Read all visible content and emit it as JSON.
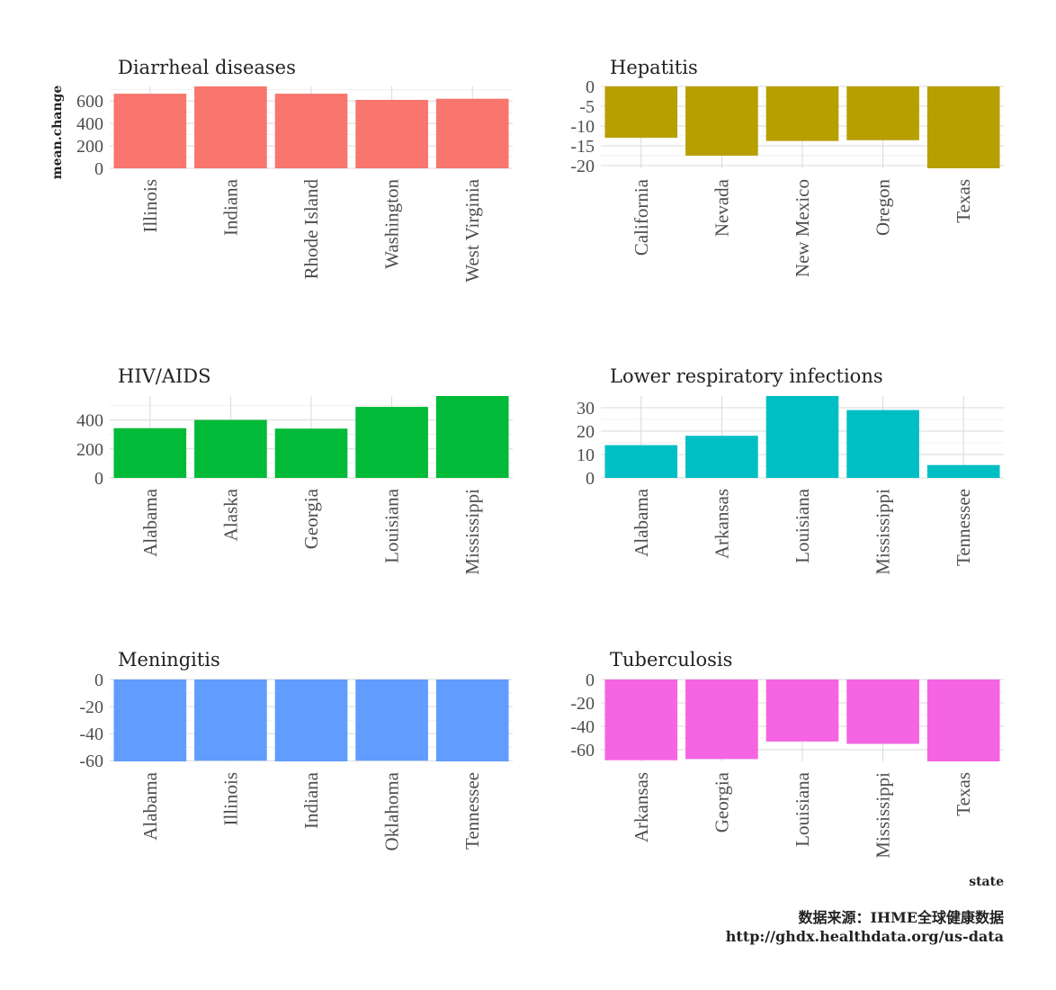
{
  "chart_data": {
    "type": "bar",
    "facet_layout": "3x2",
    "ylabel": "mean.change",
    "xlabel": "state",
    "caption_line1": "数据来源：IHME全球健康数据",
    "caption_line2": "http://ghdx.healthdata.org/us-data",
    "grid": true,
    "panels": [
      {
        "title": "Diarrheal diseases",
        "color": "#F8766D",
        "categories": [
          "Illinois",
          "Indiana",
          "Rhode Island",
          "Washington",
          "West Virginia"
        ],
        "values": [
          665,
          730,
          665,
          610,
          620
        ],
        "ylim": [
          0,
          730
        ],
        "yticks": [
          0,
          200,
          400,
          600
        ]
      },
      {
        "title": "Hepatitis",
        "color": "#B79F00",
        "categories": [
          "California",
          "Nevada",
          "New Mexico",
          "Oregon",
          "Texas"
        ],
        "values": [
          -13,
          -17.5,
          -13.8,
          -13.6,
          -20.7
        ],
        "ylim": [
          -20.7,
          0
        ],
        "yticks": [
          0,
          -5,
          -10,
          -15,
          -20
        ]
      },
      {
        "title": "HIV/AIDS",
        "color": "#00BA38",
        "categories": [
          "Alabama",
          "Alaska",
          "Georgia",
          "Louisiana",
          "Mississippi"
        ],
        "values": [
          343,
          400,
          340,
          490,
          565
        ],
        "ylim": [
          0,
          565
        ],
        "yticks": [
          0,
          200,
          400
        ]
      },
      {
        "title": "Lower respiratory infections",
        "color": "#00BFC4",
        "categories": [
          "Alabama",
          "Arkansas",
          "Louisiana",
          "Mississippi",
          "Tennessee"
        ],
        "values": [
          14,
          18,
          35,
          29,
          5.5
        ],
        "ylim": [
          0,
          35
        ],
        "yticks": [
          0,
          10,
          20,
          30
        ]
      },
      {
        "title": "Meningitis",
        "color": "#619CFF",
        "categories": [
          "Alabama",
          "Illinois",
          "Indiana",
          "Oklahoma",
          "Tennessee"
        ],
        "values": [
          -60.5,
          -60,
          -60.5,
          -60,
          -60.5
        ],
        "ylim": [
          -60.5,
          0
        ],
        "yticks": [
          0,
          -20,
          -40,
          -60
        ]
      },
      {
        "title": "Tuberculosis",
        "color": "#F564E3",
        "categories": [
          "Arkansas",
          "Georgia",
          "Louisiana",
          "Mississippi",
          "Texas"
        ],
        "values": [
          -69,
          -68,
          -53,
          -55,
          -70
        ],
        "ylim": [
          -70,
          0
        ],
        "yticks": [
          0,
          -20,
          -40,
          -60
        ]
      }
    ]
  }
}
